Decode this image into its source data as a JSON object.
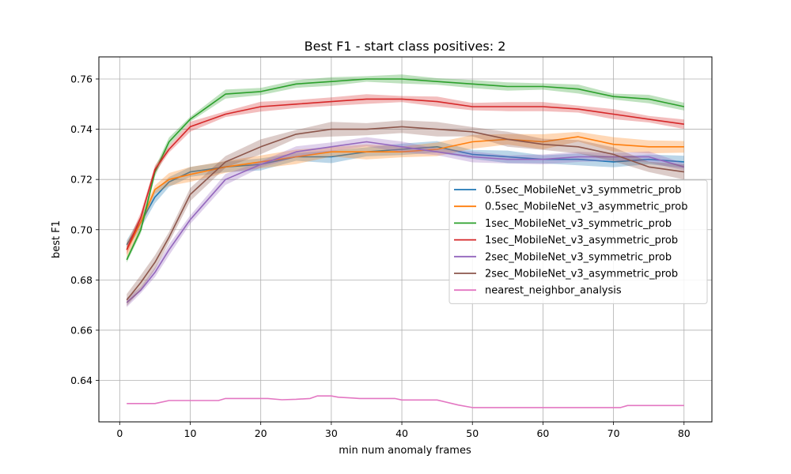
{
  "chart_data": {
    "type": "line",
    "title": "Best F1 - start class positives: 2",
    "xlabel": "min num anomaly frames",
    "ylabel": "best F1",
    "xlim": [
      -2.95,
      83.95
    ],
    "ylim": [
      0.6235,
      0.7688
    ],
    "xticks": [
      0,
      10,
      20,
      30,
      40,
      50,
      60,
      70,
      80
    ],
    "yticks": [
      0.64,
      0.66,
      0.68,
      0.7,
      0.72,
      0.74,
      0.76
    ],
    "ytick_labels": [
      "0.64",
      "0.66",
      "0.68",
      "0.70",
      "0.72",
      "0.74",
      "0.76"
    ],
    "grid": true,
    "legend_position": "center-right",
    "series": [
      {
        "name": "0.5sec_MobileNet_v3_symmetric_prob",
        "color": "#1f77b4",
        "band": 0.0025,
        "points": [
          [
            1,
            0.694
          ],
          [
            3,
            0.703
          ],
          [
            5,
            0.713
          ],
          [
            7,
            0.719
          ],
          [
            10,
            0.723
          ],
          [
            15,
            0.725
          ],
          [
            20,
            0.726
          ],
          [
            25,
            0.729
          ],
          [
            30,
            0.729
          ],
          [
            35,
            0.731
          ],
          [
            40,
            0.732
          ],
          [
            45,
            0.733
          ],
          [
            50,
            0.73
          ],
          [
            55,
            0.729
          ],
          [
            60,
            0.728
          ],
          [
            65,
            0.728
          ],
          [
            70,
            0.727
          ],
          [
            75,
            0.728
          ],
          [
            80,
            0.727
          ]
        ]
      },
      {
        "name": "0.5sec_MobileNet_v3_asymmetric_prob",
        "color": "#ff7f0e",
        "band": 0.003,
        "points": [
          [
            1,
            0.692
          ],
          [
            3,
            0.703
          ],
          [
            5,
            0.716
          ],
          [
            7,
            0.72
          ],
          [
            10,
            0.722
          ],
          [
            15,
            0.725
          ],
          [
            20,
            0.727
          ],
          [
            25,
            0.729
          ],
          [
            30,
            0.731
          ],
          [
            35,
            0.731
          ],
          [
            40,
            0.731
          ],
          [
            45,
            0.732
          ],
          [
            50,
            0.735
          ],
          [
            55,
            0.736
          ],
          [
            60,
            0.735
          ],
          [
            65,
            0.737
          ],
          [
            70,
            0.734
          ],
          [
            75,
            0.733
          ],
          [
            80,
            0.733
          ]
        ]
      },
      {
        "name": "1sec_MobileNet_v3_symmetric_prob",
        "color": "#2ca02c",
        "band": 0.0018,
        "points": [
          [
            1,
            0.688
          ],
          [
            3,
            0.7
          ],
          [
            5,
            0.723
          ],
          [
            7,
            0.735
          ],
          [
            10,
            0.744
          ],
          [
            15,
            0.754
          ],
          [
            20,
            0.755
          ],
          [
            25,
            0.758
          ],
          [
            30,
            0.759
          ],
          [
            35,
            0.76
          ],
          [
            40,
            0.76
          ],
          [
            45,
            0.759
          ],
          [
            50,
            0.758
          ],
          [
            55,
            0.757
          ],
          [
            60,
            0.757
          ],
          [
            65,
            0.756
          ],
          [
            70,
            0.753
          ],
          [
            75,
            0.752
          ],
          [
            80,
            0.749
          ]
        ]
      },
      {
        "name": "1sec_MobileNet_v3_asymmetric_prob",
        "color": "#d62728",
        "band": 0.002,
        "points": [
          [
            1,
            0.692
          ],
          [
            3,
            0.705
          ],
          [
            5,
            0.724
          ],
          [
            7,
            0.732
          ],
          [
            10,
            0.741
          ],
          [
            15,
            0.746
          ],
          [
            20,
            0.749
          ],
          [
            25,
            0.75
          ],
          [
            30,
            0.751
          ],
          [
            35,
            0.752
          ],
          [
            40,
            0.752
          ],
          [
            45,
            0.751
          ],
          [
            50,
            0.749
          ],
          [
            55,
            0.749
          ],
          [
            60,
            0.749
          ],
          [
            65,
            0.748
          ],
          [
            70,
            0.746
          ],
          [
            75,
            0.744
          ],
          [
            80,
            0.742
          ]
        ]
      },
      {
        "name": "2sec_MobileNet_v3_symmetric_prob",
        "color": "#9467bd",
        "band": 0.0022,
        "points": [
          [
            1,
            0.671
          ],
          [
            3,
            0.676
          ],
          [
            5,
            0.683
          ],
          [
            7,
            0.692
          ],
          [
            10,
            0.704
          ],
          [
            15,
            0.72
          ],
          [
            20,
            0.726
          ],
          [
            25,
            0.731
          ],
          [
            30,
            0.733
          ],
          [
            35,
            0.735
          ],
          [
            40,
            0.733
          ],
          [
            45,
            0.731
          ],
          [
            50,
            0.729
          ],
          [
            55,
            0.728
          ],
          [
            60,
            0.728
          ],
          [
            65,
            0.729
          ],
          [
            70,
            0.729
          ],
          [
            75,
            0.729
          ],
          [
            80,
            0.725
          ]
        ]
      },
      {
        "name": "2sec_MobileNet_v3_asymmetric_prob",
        "color": "#8c564b",
        "band": 0.003,
        "points": [
          [
            1,
            0.672
          ],
          [
            3,
            0.679
          ],
          [
            5,
            0.687
          ],
          [
            7,
            0.697
          ],
          [
            10,
            0.714
          ],
          [
            15,
            0.727
          ],
          [
            20,
            0.733
          ],
          [
            25,
            0.738
          ],
          [
            30,
            0.74
          ],
          [
            35,
            0.74
          ],
          [
            40,
            0.741
          ],
          [
            45,
            0.74
          ],
          [
            50,
            0.739
          ],
          [
            55,
            0.736
          ],
          [
            60,
            0.734
          ],
          [
            65,
            0.733
          ],
          [
            70,
            0.73
          ],
          [
            75,
            0.725
          ],
          [
            80,
            0.723
          ]
        ]
      },
      {
        "name": "nearest_neighbor_analysis",
        "color": "#e377c2",
        "band": 0,
        "points": [
          [
            1,
            0.6308
          ],
          [
            5,
            0.6308
          ],
          [
            7,
            0.632
          ],
          [
            14,
            0.632
          ],
          [
            15,
            0.6328
          ],
          [
            21,
            0.6328
          ],
          [
            23,
            0.6323
          ],
          [
            25,
            0.6325
          ],
          [
            27,
            0.6328
          ],
          [
            28,
            0.6338
          ],
          [
            30,
            0.6338
          ],
          [
            31,
            0.6333
          ],
          [
            33,
            0.633
          ],
          [
            34,
            0.6328
          ],
          [
            39,
            0.6328
          ],
          [
            40,
            0.6322
          ],
          [
            45,
            0.6322
          ],
          [
            48,
            0.6302
          ],
          [
            50,
            0.6292
          ],
          [
            71,
            0.6292
          ],
          [
            72,
            0.63
          ],
          [
            80,
            0.63
          ]
        ]
      }
    ]
  }
}
